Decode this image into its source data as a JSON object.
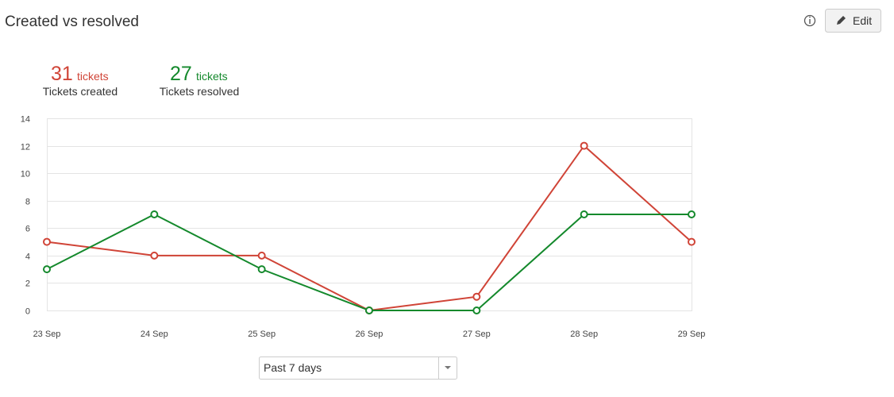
{
  "header": {
    "title": "Created vs resolved",
    "edit": "Edit"
  },
  "summary": [
    {
      "count": 31,
      "unit": "tickets"
    },
    {
      "count": 27,
      "unit": "tickets"
    }
  ],
  "chart_data": {
    "type": "line",
    "categories": [
      "23 Sep",
      "24 Sep",
      "25 Sep",
      "26 Sep",
      "27 Sep",
      "28 Sep",
      "29 Sep"
    ],
    "series": [
      {
        "name": "Tickets created",
        "color": "#d04437",
        "values": [
          5,
          4,
          4,
          0,
          1,
          12,
          5
        ]
      },
      {
        "name": "Tickets resolved",
        "color": "#14892c",
        "values": [
          3,
          7,
          3,
          0,
          0,
          7,
          7
        ]
      }
    ],
    "ylim": [
      0,
      14
    ],
    "yticks": [
      0,
      2,
      4,
      6,
      8,
      10,
      12,
      14
    ],
    "grid": true
  },
  "period_select": "Past 7 days"
}
